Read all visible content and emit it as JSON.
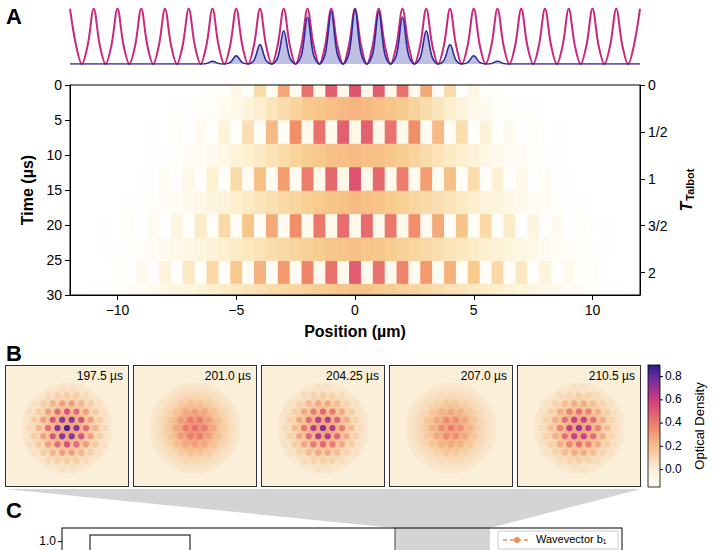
{
  "chart_data": [
    {
      "panel": "A",
      "type": "line",
      "tick_labels": false,
      "xlim": [
        -12,
        12
      ],
      "ylim": [
        0,
        1.05
      ],
      "x": [
        -12,
        -11.75,
        -11.5,
        -11.25,
        -11,
        -10.75,
        -10.5,
        -10.25,
        -10,
        -9.75,
        -9.5,
        -9.25,
        -9,
        -8.75,
        -8.5,
        -8.25,
        -8,
        -7.75,
        -7.5,
        -7.25,
        -7,
        -6.75,
        -6.5,
        -6.25,
        -6,
        -5.75,
        -5.5,
        -5.25,
        -5,
        -4.75,
        -4.5,
        -4.25,
        -4,
        -3.75,
        -3.5,
        -3.25,
        -3,
        -2.75,
        -2.5,
        -2.25,
        -2,
        -1.75,
        -1.5,
        -1.25,
        -1,
        -0.75,
        -0.5,
        -0.25,
        0,
        0.25,
        0.5,
        0.75,
        1,
        1.25,
        1.5,
        1.75,
        2,
        2.25,
        2.5,
        2.75,
        3,
        3.25,
        3.5,
        3.75,
        4,
        4.25,
        4.5,
        4.75,
        5,
        5.25,
        5.5,
        5.75,
        6,
        6.25,
        6.5,
        6.75,
        7,
        7.25,
        7.5,
        7.75,
        8,
        8.25,
        8.5,
        8.75,
        9,
        9.25,
        9.5,
        9.75,
        10,
        10.25,
        10.5,
        10.75,
        11,
        11.25,
        11.5,
        11.75,
        12
      ],
      "series": [
        {
          "color": "#c8287d",
          "values": [
            1,
            0.35,
            0,
            0.35,
            1,
            0.35,
            0,
            0.35,
            1,
            0.35,
            0,
            0.35,
            1,
            0.35,
            0,
            0.35,
            1,
            0.35,
            0,
            0.35,
            1,
            0.35,
            0,
            0.35,
            1,
            0.35,
            0,
            0.35,
            1,
            0.35,
            0,
            0.35,
            1,
            0.35,
            0,
            0.35,
            1,
            0.35,
            0,
            0.35,
            1,
            0.35,
            0,
            0.35,
            1,
            0.35,
            0,
            0.35,
            1,
            0.35,
            0,
            0.35,
            1,
            0.35,
            0,
            0.35,
            1,
            0.35,
            0,
            0.35,
            1,
            0.35,
            0,
            0.35,
            1,
            0.35,
            0,
            0.35,
            1,
            0.35,
            0,
            0.35,
            1,
            0.35,
            0,
            0.35,
            1,
            0.35,
            0,
            0.35,
            1,
            0.35,
            0,
            0.35,
            1,
            0.35,
            0,
            0.35,
            1,
            0.35,
            0,
            0.35,
            1,
            0.35,
            0,
            0.35,
            1
          ]
        },
        {
          "color": "#2b2a9c",
          "values": [
            0,
            0,
            0,
            0,
            0,
            0,
            0,
            0,
            0,
            0,
            0,
            0,
            0,
            0,
            0,
            0,
            0,
            0,
            0,
            0,
            0,
            0,
            0,
            0.01,
            0.05,
            0.01,
            0,
            0.03,
            0.15,
            0.03,
            0,
            0.07,
            0.35,
            0.07,
            0,
            0.12,
            0.6,
            0.12,
            0,
            0.17,
            0.85,
            0.17,
            0,
            0.19,
            0.95,
            0.19,
            0,
            0.2,
            1,
            0.2,
            0,
            0.19,
            0.95,
            0.19,
            0,
            0.17,
            0.85,
            0.17,
            0,
            0.12,
            0.6,
            0.12,
            0,
            0.07,
            0.35,
            0.07,
            0,
            0.03,
            0.15,
            0.03,
            0,
            0.01,
            0.05,
            0.01,
            0,
            0,
            0,
            0,
            0,
            0,
            0,
            0,
            0,
            0,
            0,
            0,
            0,
            0,
            0,
            0,
            0,
            0,
            0,
            0,
            0,
            0,
            0
          ]
        }
      ]
    },
    {
      "panel": "A",
      "type": "heatmap",
      "xlabel": "Position (µm)",
      "ylabel": "Time (µs)",
      "y2label": {
        "text": "T",
        "subscript": "Talbot"
      },
      "xlim": [
        -12,
        12
      ],
      "xticks": [
        {
          "value": -10,
          "label": "−10"
        },
        {
          "value": -5,
          "label": "−5"
        },
        0,
        5,
        10
      ],
      "ylim": [
        0,
        30
      ],
      "yticks": [
        0,
        5,
        10,
        15,
        20,
        25,
        30
      ],
      "y2lim": [
        0,
        2.24
      ],
      "y2ticks": [
        0,
        {
          "value": 0.5,
          "label": "1/2"
        },
        1,
        {
          "value": 1.5,
          "label": "3/2"
        },
        2
      ],
      "x": [
        -11,
        -10.5,
        -10,
        -9.5,
        -9,
        -8.5,
        -8,
        -7.5,
        -7,
        -6.5,
        -6,
        -5.5,
        -5,
        -4.5,
        -4,
        -3.5,
        -3,
        -2.5,
        -2,
        -1.5,
        -1,
        -0.5,
        0,
        0.5,
        1,
        1.5,
        2,
        2.5,
        3,
        3.5,
        4,
        4.5,
        5,
        5.5,
        6,
        6.5,
        7,
        7.5,
        8,
        8.5,
        9,
        9.5,
        10,
        10.5,
        11
      ],
      "y": [
        0,
        3.4,
        6.7,
        10.1,
        13.4,
        16.8,
        20.1,
        23.5,
        26.8,
        30
      ],
      "values": [
        [
          0,
          0,
          0,
          0,
          0,
          0,
          0,
          0,
          0,
          0,
          0.03,
          0.01,
          0.12,
          0.02,
          0.35,
          0.05,
          0.6,
          0.07,
          0.85,
          0.09,
          0.95,
          0.1,
          1,
          0.1,
          0.95,
          0.09,
          0.85,
          0.07,
          0.6,
          0.05,
          0.35,
          0.02,
          0.12,
          0.01,
          0.03,
          0,
          0,
          0,
          0,
          0,
          0,
          0,
          0,
          0,
          0
        ],
        [
          0,
          0,
          0,
          0,
          0,
          0,
          0,
          0.01,
          0.01,
          0.02,
          0.03,
          0.07,
          0.1,
          0.16,
          0.22,
          0.28,
          0.34,
          0.4,
          0.46,
          0.48,
          0.51,
          0.53,
          0.55,
          0.53,
          0.51,
          0.48,
          0.46,
          0.4,
          0.34,
          0.28,
          0.22,
          0.16,
          0.1,
          0.07,
          0.03,
          0.02,
          0.01,
          0.01,
          0,
          0,
          0,
          0,
          0,
          0,
          0
        ],
        [
          0,
          0,
          0,
          0,
          0,
          0.01,
          0,
          0.03,
          0,
          0.07,
          0.01,
          0.17,
          0.02,
          0.33,
          0.04,
          0.52,
          0.06,
          0.71,
          0.08,
          0.85,
          0.09,
          0.93,
          0.1,
          0.93,
          0.09,
          0.85,
          0.08,
          0.71,
          0.06,
          0.52,
          0.04,
          0.33,
          0.02,
          0.17,
          0.01,
          0.07,
          0,
          0.03,
          0,
          0.01,
          0,
          0,
          0,
          0,
          0
        ],
        [
          0,
          0,
          0,
          0,
          0,
          0.01,
          0.01,
          0.02,
          0.04,
          0.06,
          0.08,
          0.12,
          0.17,
          0.21,
          0.25,
          0.3,
          0.35,
          0.4,
          0.44,
          0.47,
          0.5,
          0.51,
          0.52,
          0.51,
          0.5,
          0.47,
          0.44,
          0.4,
          0.35,
          0.3,
          0.25,
          0.21,
          0.17,
          0.12,
          0.08,
          0.06,
          0.04,
          0.02,
          0.01,
          0.01,
          0,
          0,
          0,
          0,
          0
        ],
        [
          0,
          0,
          0,
          0,
          0.01,
          0.01,
          0.05,
          0.01,
          0.1,
          0.02,
          0.2,
          0.03,
          0.35,
          0.04,
          0.5,
          0.06,
          0.65,
          0.07,
          0.8,
          0.09,
          0.9,
          0.1,
          1,
          0.1,
          0.9,
          0.09,
          0.8,
          0.07,
          0.65,
          0.06,
          0.5,
          0.04,
          0.35,
          0.03,
          0.2,
          0.02,
          0.1,
          0.01,
          0.05,
          0.01,
          0.01,
          0,
          0,
          0,
          0
        ],
        [
          0,
          0,
          0,
          0.01,
          0.01,
          0.02,
          0.04,
          0.06,
          0.08,
          0.11,
          0.14,
          0.17,
          0.21,
          0.25,
          0.29,
          0.32,
          0.36,
          0.39,
          0.43,
          0.46,
          0.48,
          0.5,
          0.52,
          0.5,
          0.48,
          0.46,
          0.43,
          0.39,
          0.36,
          0.32,
          0.29,
          0.25,
          0.21,
          0.17,
          0.14,
          0.11,
          0.08,
          0.06,
          0.04,
          0.02,
          0.01,
          0.01,
          0,
          0,
          0
        ],
        [
          0,
          0.01,
          0,
          0.03,
          0,
          0.07,
          0.01,
          0.14,
          0.02,
          0.24,
          0.03,
          0.36,
          0.04,
          0.48,
          0.05,
          0.6,
          0.07,
          0.72,
          0.08,
          0.82,
          0.09,
          0.88,
          0.09,
          0.88,
          0.09,
          0.82,
          0.08,
          0.72,
          0.07,
          0.6,
          0.05,
          0.48,
          0.04,
          0.36,
          0.03,
          0.24,
          0.02,
          0.14,
          0.01,
          0.07,
          0,
          0.03,
          0,
          0.01,
          0
        ],
        [
          0,
          0.01,
          0.01,
          0.02,
          0.03,
          0.05,
          0.07,
          0.1,
          0.12,
          0.15,
          0.18,
          0.21,
          0.24,
          0.27,
          0.3,
          0.33,
          0.36,
          0.39,
          0.42,
          0.44,
          0.47,
          0.48,
          0.5,
          0.48,
          0.47,
          0.44,
          0.42,
          0.39,
          0.36,
          0.33,
          0.3,
          0.27,
          0.24,
          0.21,
          0.18,
          0.15,
          0.12,
          0.1,
          0.07,
          0.05,
          0.03,
          0.02,
          0.01,
          0.01,
          0
        ],
        [
          0,
          0,
          0.03,
          0.01,
          0.08,
          0.01,
          0.16,
          0.02,
          0.26,
          0.03,
          0.36,
          0.04,
          0.46,
          0.05,
          0.56,
          0.06,
          0.66,
          0.07,
          0.76,
          0.08,
          0.85,
          0.09,
          0.95,
          0.09,
          0.85,
          0.08,
          0.76,
          0.07,
          0.66,
          0.06,
          0.56,
          0.05,
          0.46,
          0.04,
          0.36,
          0.03,
          0.26,
          0.02,
          0.16,
          0.01,
          0.08,
          0.01,
          0.03,
          0,
          0
        ],
        [
          0.01,
          0.01,
          0.02,
          0.04,
          0.06,
          0.08,
          0.1,
          0.13,
          0.15,
          0.18,
          0.21,
          0.24,
          0.26,
          0.29,
          0.31,
          0.34,
          0.36,
          0.39,
          0.41,
          0.44,
          0.46,
          0.48,
          0.5,
          0.48,
          0.46,
          0.44,
          0.41,
          0.39,
          0.36,
          0.34,
          0.31,
          0.29,
          0.26,
          0.24,
          0.21,
          0.18,
          0.15,
          0.13,
          0.1,
          0.08,
          0.06,
          0.04,
          0.02,
          0.01,
          0.01
        ]
      ]
    },
    {
      "panel": "B",
      "type": "image",
      "images": [
        {
          "label": "197.5 µs",
          "background_od": 0,
          "cloud_od": 0.3,
          "peak_od": 0.85
        },
        {
          "label": "201.0 µs",
          "background_od": 0,
          "cloud_od": 0.35,
          "peak_od": 0.45
        },
        {
          "label": "204.25 µs",
          "background_od": 0,
          "cloud_od": 0.3,
          "peak_od": 0.75
        },
        {
          "label": "207.0 µs",
          "background_od": 0,
          "cloud_od": 0.3,
          "peak_od": 0.4
        },
        {
          "label": "210.5 µs",
          "background_od": 0,
          "cloud_od": 0.3,
          "peak_od": 0.7
        }
      ],
      "colorbar": {
        "label": "Optical Density",
        "range": [
          -0.15,
          0.9
        ],
        "ticks": [
          {
            "value": 0,
            "label": "0.0"
          },
          {
            "value": 0.2,
            "label": "0.2"
          },
          {
            "value": 0.4,
            "label": "0.4"
          },
          {
            "value": 0.6,
            "label": "0.6"
          },
          {
            "value": 0.8,
            "label": "0.8"
          }
        ]
      }
    },
    {
      "panel": "C",
      "type": "line",
      "legend": "upper right",
      "ylim": [
        -1.1,
        1.1
      ],
      "yticks": [
        {
          "value": 1,
          "label": "1.0"
        }
      ],
      "series": [
        {
          "name": "Wavevector b₁",
          "color": "#e8905a",
          "line_style": "dashed",
          "marker": "circle"
        }
      ]
    }
  ]
}
